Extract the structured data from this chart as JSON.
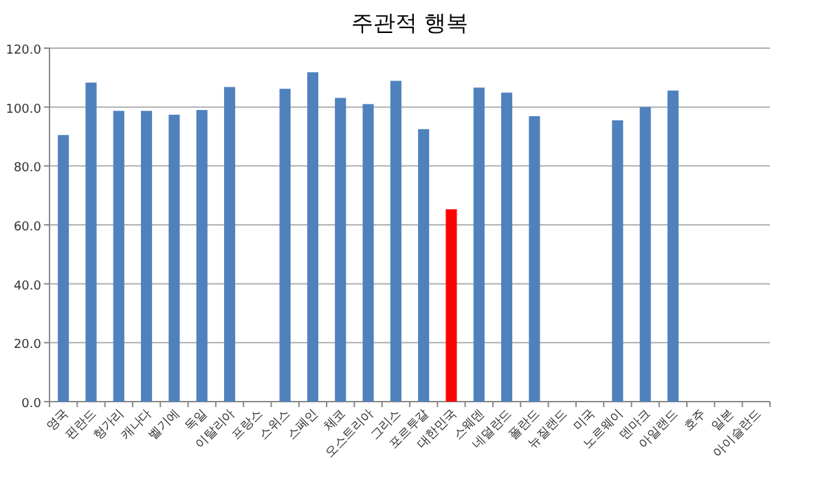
{
  "chart_data": {
    "type": "bar",
    "title": "주관적 행복",
    "categories": [
      "영국",
      "핀란드",
      "헝가리",
      "캐나다",
      "벨기에",
      "독일",
      "이탈리아",
      "프랑스",
      "스위스",
      "스페인",
      "체코",
      "오스트리아",
      "그리스",
      "포르투갈",
      "대한민국",
      "스웨덴",
      "네덜란드",
      "폴란드",
      "뉴질랜드",
      "미국",
      "노르웨이",
      "덴마크",
      "아일랜드",
      "호주",
      "일본",
      "아이슬란드"
    ],
    "values": [
      90.5,
      108.3,
      98.7,
      98.7,
      97.4,
      99.0,
      106.8,
      null,
      106.2,
      111.8,
      103.1,
      101.0,
      108.9,
      92.5,
      65.3,
      106.6,
      104.9,
      96.9,
      null,
      null,
      95.5,
      100.0,
      105.6,
      null,
      null,
      null
    ],
    "colors": [
      "#4f81bd",
      "#4f81bd",
      "#4f81bd",
      "#4f81bd",
      "#4f81bd",
      "#4f81bd",
      "#4f81bd",
      null,
      "#4f81bd",
      "#4f81bd",
      "#4f81bd",
      "#4f81bd",
      "#4f81bd",
      "#4f81bd",
      "#ff0000",
      "#4f81bd",
      "#4f81bd",
      "#4f81bd",
      null,
      null,
      "#4f81bd",
      "#4f81bd",
      "#4f81bd",
      null,
      null,
      null
    ],
    "ylim": [
      0,
      120
    ],
    "yticks": [
      {
        "value": 0,
        "label": "0.0"
      },
      {
        "value": 20,
        "label": "20.0"
      },
      {
        "value": 40,
        "label": "40.0"
      },
      {
        "value": 60,
        "label": "60.0"
      },
      {
        "value": 80,
        "label": "80.0"
      },
      {
        "value": 100,
        "label": "100.0"
      },
      {
        "value": 120,
        "label": "120.0"
      }
    ],
    "grid": "y"
  }
}
